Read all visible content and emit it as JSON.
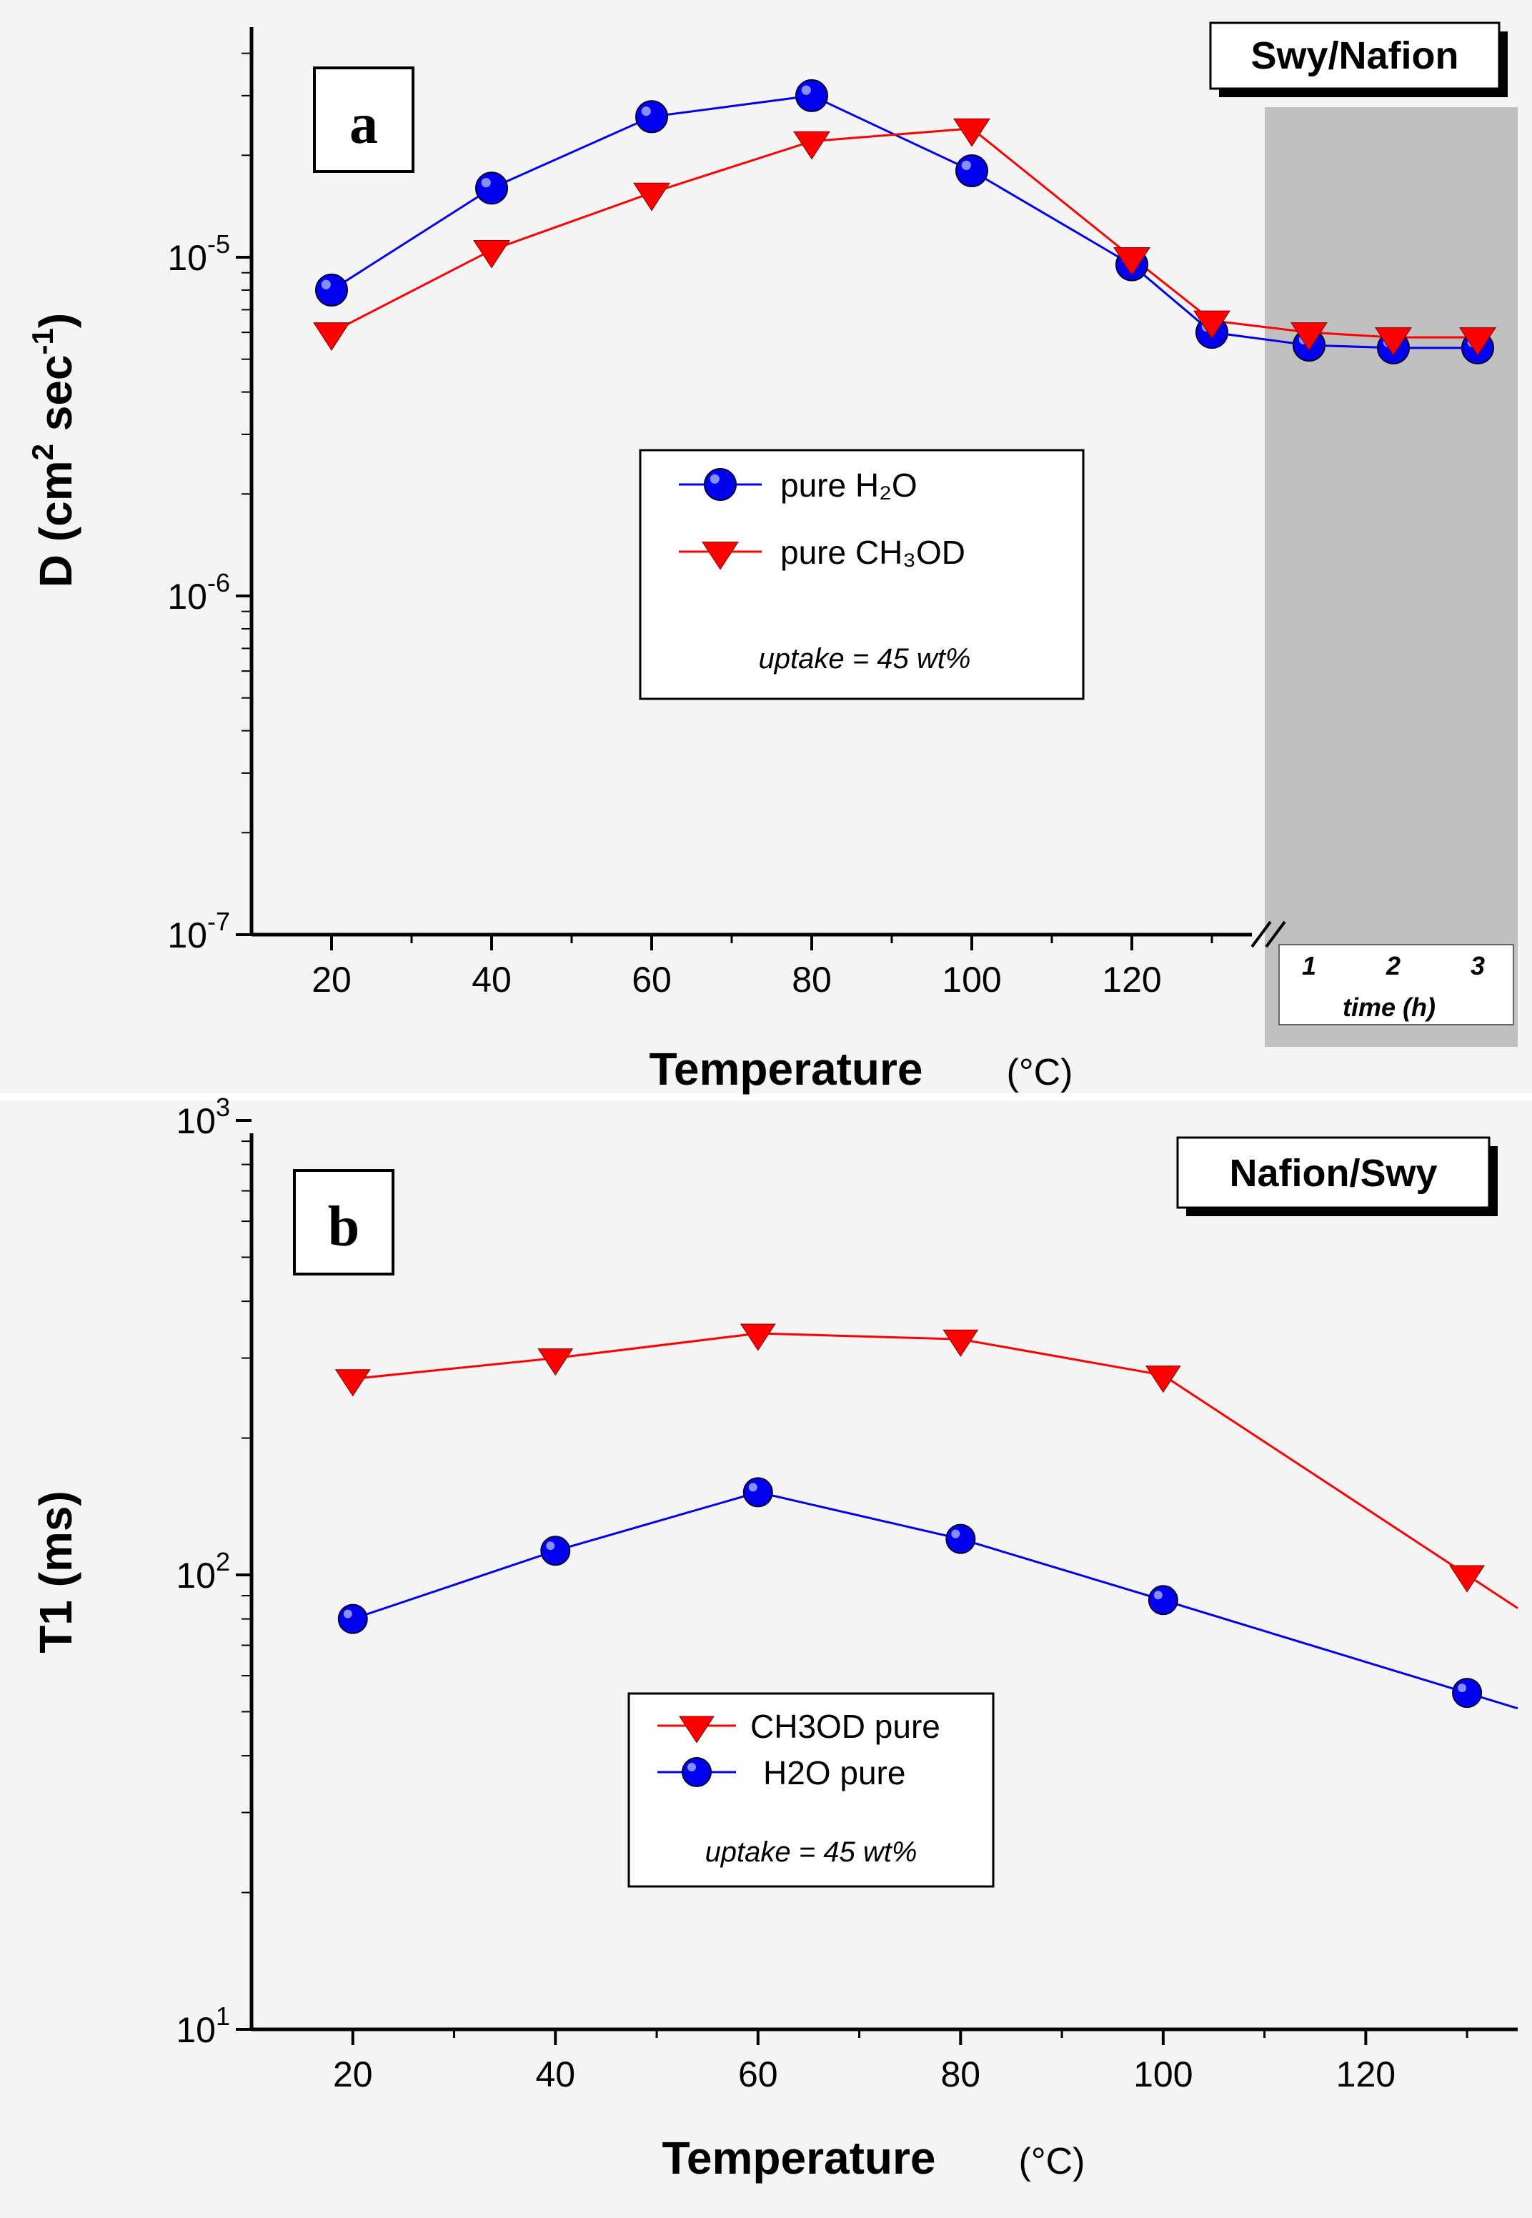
{
  "colors": {
    "background": "#f4f4f4",
    "h2o": "#0000ee",
    "ch3od": "#ff0000",
    "shade": "#c0c0c0"
  },
  "chart_data": [
    {
      "type": "line",
      "panel_letter": "a",
      "tag": "Swy/Nafion",
      "xlabel": "Temperature",
      "xunit": "(°C)",
      "ylabel": "D (cm² sec⁻¹)",
      "yscale": "log",
      "ylim": [
        1e-07,
        5e-05
      ],
      "xlim": [
        10,
        135
      ],
      "x_ticks": [
        "20",
        "40",
        "60",
        "80",
        "100",
        "120"
      ],
      "y_ticks": [
        {
          "base": "10",
          "exp": "-7"
        },
        {
          "base": "10",
          "exp": "-6"
        },
        {
          "base": "10",
          "exp": "-5"
        }
      ],
      "time_axis": {
        "label": "time (h)",
        "ticks": [
          "1",
          "2",
          "3"
        ]
      },
      "x": [
        20,
        40,
        60,
        80,
        100,
        120,
        130
      ],
      "series": [
        {
          "name": "pure H₂O",
          "marker": "circle",
          "values": [
            8e-06,
            1.6e-05,
            2.6e-05,
            3e-05,
            1.8e-05,
            9.5e-06,
            6e-06
          ],
          "time_values": [
            5.5e-06,
            5.4e-06,
            5.4e-06
          ]
        },
        {
          "name": "pure CH₃OD",
          "marker": "triangle",
          "values": [
            6e-06,
            1.05e-05,
            1.55e-05,
            2.2e-05,
            2.4e-05,
            1e-05,
            6.5e-06
          ],
          "time_values": [
            6e-06,
            5.8e-06,
            5.8e-06
          ]
        }
      ],
      "annotation": "uptake = 45 wt%"
    },
    {
      "type": "line",
      "panel_letter": "b",
      "tag": "Nafion/Swy",
      "xlabel": "Temperature",
      "xunit": "(°C)",
      "ylabel": "T1 (ms)",
      "yscale": "log",
      "ylim": [
        10,
        1000
      ],
      "xlim": [
        10,
        135
      ],
      "x_ticks": [
        "20",
        "40",
        "60",
        "80",
        "100",
        "120"
      ],
      "y_ticks": [
        {
          "base": "10",
          "exp": "1"
        },
        {
          "base": "10",
          "exp": "2"
        },
        {
          "base": "10",
          "exp": "3"
        }
      ],
      "x": [
        20,
        40,
        60,
        80,
        100,
        130
      ],
      "series": [
        {
          "name": "CH3OD pure",
          "marker": "triangle",
          "values": [
            270,
            300,
            340,
            330,
            275,
            100
          ]
        },
        {
          "name": "H2O pure",
          "marker": "circle",
          "values": [
            80,
            113,
            152,
            120,
            88,
            55
          ]
        }
      ],
      "annotation": "uptake = 45 wt%"
    }
  ]
}
